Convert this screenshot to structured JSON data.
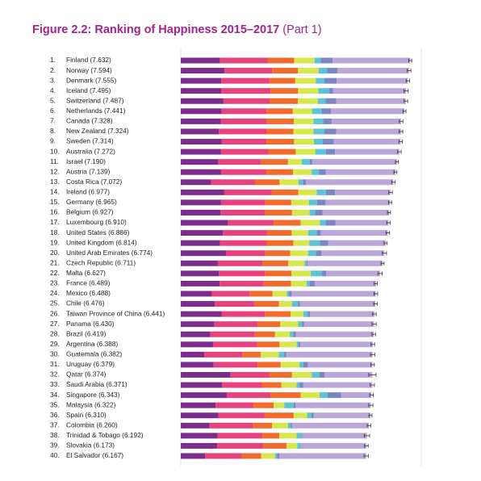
{
  "chart_data": {
    "type": "stacked-bar-horizontal",
    "title": "Figure 2.2: Ranking of Happiness 2015–2017",
    "subtitle": "(Part 1)",
    "ranks": [
      "1.",
      "2.",
      "3.",
      "4.",
      "5.",
      "6.",
      "7.",
      "8.",
      "9.",
      "10.",
      "11.",
      "12.",
      "13.",
      "14.",
      "15.",
      "16.",
      "17.",
      "18.",
      "19.",
      "20.",
      "21.",
      "22.",
      "23.",
      "24.",
      "25.",
      "26.",
      "27.",
      "28.",
      "29.",
      "30.",
      "31.",
      "32.",
      "33.",
      "34.",
      "35.",
      "36.",
      "37.",
      "38.",
      "39.",
      "40."
    ],
    "categories": [
      "Finland (7.632)",
      "Norway (7.594)",
      "Denmark (7.555)",
      "Iceland (7.495)",
      "Switzerland (7.487)",
      "Netherlands (7.441)",
      "Canada (7.328)",
      "New Zealand (7.324)",
      "Sweden (7.314)",
      "Australia (7.272)",
      "Israel (7.190)",
      "Austria (7.139)",
      "Costa Rica (7.072)",
      "Ireland (6.977)",
      "Germany (6.965)",
      "Belgium (6.927)",
      "Luxembourg (6.910)",
      "United States (6.886)",
      "United Kingdom (6.814)",
      "United Arab Emirates (6.774)",
      "Czech Republic (6.711)",
      "Malta (6.627)",
      "France (6.489)",
      "Mexico (6.488)",
      "Chile (6.476)",
      "Taiwan Province of China (6.441)",
      "Panama (6.430)",
      "Brazil (6.419)",
      "Argentina (6.388)",
      "Guatemala (6.382)",
      "Uruguay (6.379)",
      "Qatar (6.374)",
      "Saudi Arabia (6.371)",
      "Singapore (6.343)",
      "Malaysia (6.322)",
      "Spain (6.310)",
      "Colombia (6.260)",
      "Trinidad & Tobago (6.192)",
      "Slovakia (6.173)",
      "El Salvador (6.167)"
    ],
    "xlim": [
      0,
      8
    ],
    "series": [
      {
        "color": "#7b2d8e",
        "values": [
          1.305,
          1.456,
          1.351,
          1.343,
          1.42,
          1.361,
          1.33,
          1.268,
          1.355,
          1.34,
          1.244,
          1.341,
          1.01,
          1.448,
          1.34,
          1.324,
          1.576,
          1.398,
          1.301,
          1.503,
          1.233,
          1.27,
          1.293,
          1.038,
          1.131,
          1.365,
          1.112,
          0.986,
          1.073,
          0.781,
          1.093,
          1.649,
          1.379,
          1.529,
          1.161,
          1.251,
          0.96,
          1.223,
          1.21,
          0.806
        ]
      },
      {
        "color": "#e8417e",
        "values": [
          1.592,
          1.582,
          1.59,
          1.644,
          1.549,
          1.488,
          1.532,
          1.601,
          1.501,
          1.573,
          1.433,
          1.504,
          1.459,
          1.583,
          1.474,
          1.483,
          1.52,
          1.471,
          1.559,
          1.31,
          1.489,
          1.525,
          1.466,
          1.252,
          1.331,
          1.436,
          1.438,
          1.474,
          1.468,
          1.268,
          1.459,
          1.303,
          1.331,
          1.451,
          1.258,
          1.538,
          1.439,
          1.492,
          1.537,
          1.231
        ]
      },
      {
        "color": "#f26b2a",
        "values": [
          0.874,
          0.861,
          0.868,
          0.914,
          0.927,
          0.878,
          0.896,
          0.876,
          0.913,
          0.91,
          0.888,
          0.891,
          0.817,
          0.876,
          0.861,
          0.894,
          0.896,
          0.819,
          0.883,
          0.825,
          0.854,
          0.884,
          0.908,
          0.761,
          0.808,
          0.857,
          0.759,
          0.675,
          0.744,
          0.608,
          0.771,
          0.748,
          0.633,
          1.008,
          0.669,
          0.965,
          0.635,
          0.564,
          0.776,
          0.639
        ]
      },
      {
        "color": "#d7e84a",
        "values": [
          0.681,
          0.686,
          0.683,
          0.677,
          0.66,
          0.638,
          0.653,
          0.669,
          0.659,
          0.647,
          0.464,
          0.617,
          0.632,
          0.614,
          0.586,
          0.583,
          0.632,
          0.547,
          0.533,
          0.598,
          0.543,
          0.645,
          0.52,
          0.479,
          0.431,
          0.418,
          0.597,
          0.493,
          0.57,
          0.604,
          0.625,
          0.654,
          0.509,
          0.631,
          0.356,
          0.449,
          0.531,
          0.575,
          0.354,
          0.461
        ]
      },
      {
        "color": "#5bc4d8",
        "values": [
          0.202,
          0.286,
          0.284,
          0.353,
          0.256,
          0.333,
          0.321,
          0.365,
          0.285,
          0.361,
          0.262,
          0.242,
          0.143,
          0.307,
          0.273,
          0.188,
          0.196,
          0.291,
          0.354,
          0.262,
          0.064,
          0.376,
          0.098,
          0.069,
          0.197,
          0.151,
          0.125,
          0.11,
          0.062,
          0.179,
          0.13,
          0.256,
          0.098,
          0.261,
          0.311,
          0.142,
          0.099,
          0.171,
          0.118,
          0.065
        ]
      },
      {
        "color": "#7b86c4",
        "values": [
          0.393,
          0.34,
          0.408,
          0.138,
          0.357,
          0.295,
          0.291,
          0.389,
          0.383,
          0.302,
          0.082,
          0.224,
          0.101,
          0.306,
          0.28,
          0.24,
          0.321,
          0.133,
          0.272,
          0.182,
          0.034,
          0.142,
          0.176,
          0.095,
          0.061,
          0.078,
          0.063,
          0.088,
          0.054,
          0.071,
          0.155,
          0.171,
          0.127,
          0.457,
          0.059,
          0.074,
          0.039,
          0.019,
          0.014,
          0.082
        ]
      },
      {
        "color": "#bba6d8",
        "values": [
          2.585,
          2.383,
          2.371,
          2.426,
          2.318,
          2.448,
          2.305,
          2.156,
          2.218,
          2.139,
          2.817,
          2.32,
          2.91,
          1.843,
          2.151,
          2.215,
          1.769,
          2.227,
          1.912,
          2.094,
          2.494,
          1.785,
          2.028,
          2.794,
          2.517,
          2.136,
          2.336,
          2.593,
          2.417,
          2.871,
          2.146,
          1.593,
          2.294,
          1.006,
          2.508,
          1.891,
          2.557,
          2.148,
          2.164,
          2.883
        ]
      }
    ],
    "errors": [
      0.05,
      0.06,
      0.06,
      0.07,
      0.06,
      0.05,
      0.06,
      0.06,
      0.06,
      0.06,
      0.05,
      0.05,
      0.06,
      0.06,
      0.05,
      0.05,
      0.06,
      0.06,
      0.05,
      0.07,
      0.05,
      0.07,
      0.05,
      0.06,
      0.06,
      0.06,
      0.07,
      0.06,
      0.06,
      0.07,
      0.06,
      0.12,
      0.07,
      0.06,
      0.07,
      0.05,
      0.06,
      0.09,
      0.06,
      0.07
    ],
    "error_color": "#333333",
    "title_color": "#a3238e"
  }
}
